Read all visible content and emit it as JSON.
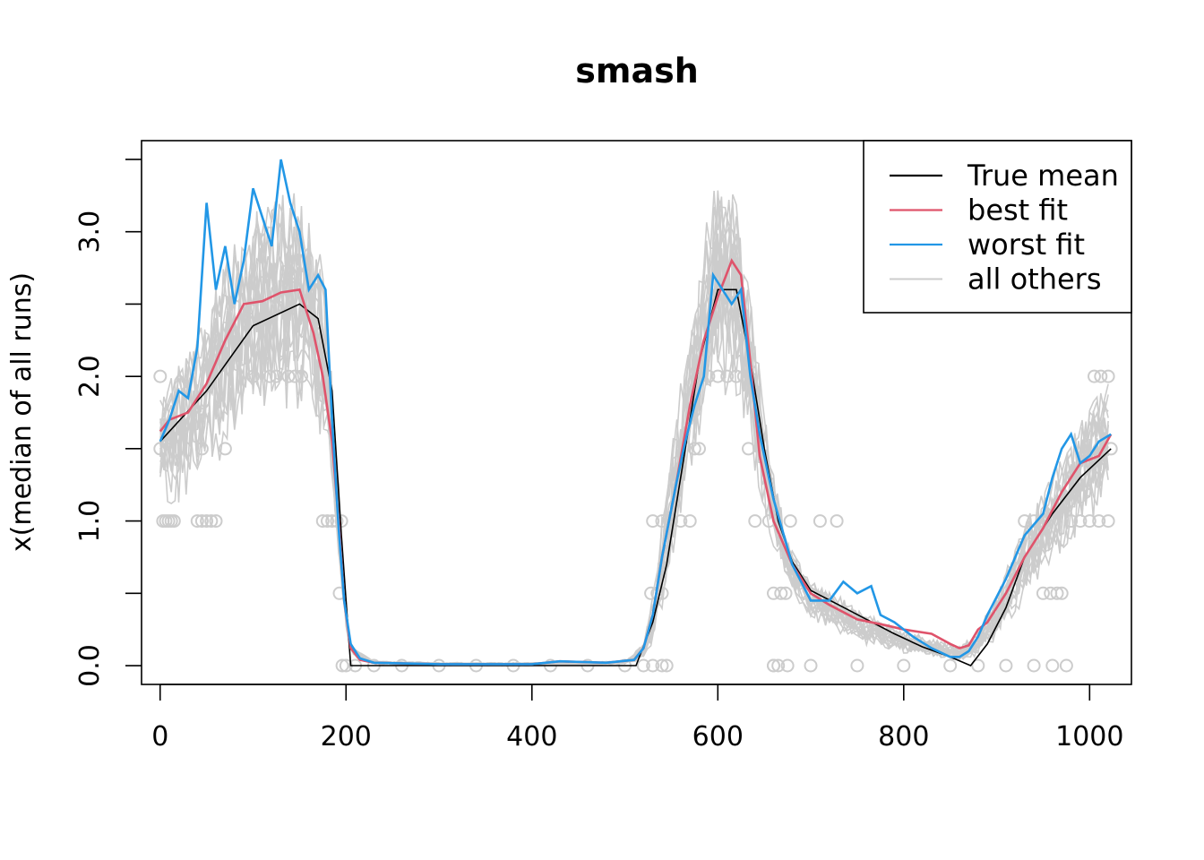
{
  "chart_data": {
    "type": "line",
    "title": "smash",
    "xlabel": "",
    "ylabel": "x(median of all runs)",
    "xlim": [
      -20,
      1045
    ],
    "ylim": [
      -0.13,
      3.63
    ],
    "x_ticks": [
      0,
      200,
      400,
      600,
      800,
      1000
    ],
    "x_tick_labels": [
      "0",
      "200",
      "400",
      "600",
      "800",
      "1000"
    ],
    "y_ticks": [
      0.0,
      0.5,
      1.0,
      1.5,
      2.0,
      2.5,
      3.0,
      3.5
    ],
    "y_tick_labels": [
      "0.0",
      "",
      "1.0",
      "",
      "2.0",
      "",
      "3.0",
      ""
    ],
    "legend": {
      "position": "top-right",
      "entries": [
        {
          "label": "True mean",
          "color": "#000000"
        },
        {
          "label": "best fit",
          "color": "#DF536B"
        },
        {
          "label": "worst fit",
          "color": "#2297E6"
        },
        {
          "label": "all others",
          "color": "#CCCCCC"
        }
      ]
    },
    "series": [
      {
        "name": "True mean",
        "color": "#000000",
        "x": [
          0,
          50,
          100,
          150,
          170,
          185,
          195,
          205,
          300,
          400,
          512,
          515,
          530,
          545,
          560,
          580,
          600,
          620,
          635,
          650,
          665,
          680,
          700,
          730,
          760,
          790,
          820,
          850,
          872,
          890,
          910,
          930,
          960,
          990,
          1023
        ],
        "values": [
          1.55,
          1.9,
          2.35,
          2.5,
          2.4,
          1.9,
          0.9,
          0.0,
          0.0,
          0.0,
          0.0,
          0.05,
          0.3,
          0.7,
          1.3,
          2.1,
          2.6,
          2.6,
          2.1,
          1.5,
          1.0,
          0.72,
          0.52,
          0.42,
          0.32,
          0.22,
          0.13,
          0.06,
          0.0,
          0.15,
          0.4,
          0.75,
          1.05,
          1.3,
          1.5
        ]
      },
      {
        "name": "best fit",
        "color": "#DF536B",
        "x": [
          0,
          10,
          30,
          50,
          70,
          90,
          110,
          130,
          150,
          165,
          175,
          185,
          192,
          198,
          205,
          215,
          230,
          300,
          400,
          430,
          480,
          510,
          520,
          530,
          540,
          555,
          570,
          585,
          600,
          615,
          625,
          635,
          645,
          660,
          680,
          700,
          720,
          750,
          780,
          800,
          830,
          850,
          860,
          870,
          880,
          890,
          910,
          930,
          950,
          970,
          990,
          1010,
          1023
        ],
        "values": [
          1.62,
          1.7,
          1.75,
          1.95,
          2.25,
          2.5,
          2.52,
          2.58,
          2.6,
          2.3,
          2.0,
          1.55,
          1.0,
          0.45,
          0.12,
          0.04,
          0.02,
          0.01,
          0.01,
          0.03,
          0.02,
          0.04,
          0.12,
          0.35,
          0.75,
          1.25,
          1.8,
          2.25,
          2.55,
          2.8,
          2.7,
          2.1,
          1.45,
          1.0,
          0.7,
          0.5,
          0.42,
          0.32,
          0.28,
          0.25,
          0.22,
          0.15,
          0.12,
          0.14,
          0.25,
          0.3,
          0.5,
          0.75,
          0.95,
          1.2,
          1.4,
          1.45,
          1.6
        ]
      },
      {
        "name": "worst fit",
        "color": "#2297E6",
        "x": [
          0,
          10,
          20,
          30,
          40,
          50,
          60,
          70,
          80,
          90,
          100,
          110,
          120,
          130,
          140,
          150,
          160,
          170,
          178,
          185,
          192,
          198,
          205,
          215,
          230,
          300,
          400,
          430,
          480,
          510,
          520,
          530,
          540,
          555,
          565,
          575,
          585,
          595,
          605,
          615,
          625,
          635,
          645,
          660,
          680,
          700,
          720,
          735,
          750,
          765,
          775,
          790,
          810,
          830,
          850,
          860,
          870,
          880,
          890,
          910,
          930,
          950,
          960,
          970,
          980,
          990,
          1000,
          1010,
          1023
        ],
        "values": [
          1.55,
          1.7,
          1.9,
          1.85,
          2.2,
          3.2,
          2.6,
          2.9,
          2.5,
          2.8,
          3.3,
          3.1,
          2.9,
          3.5,
          3.2,
          3.0,
          2.6,
          2.7,
          2.6,
          1.7,
          0.95,
          0.45,
          0.15,
          0.05,
          0.02,
          0.01,
          0.01,
          0.03,
          0.02,
          0.04,
          0.12,
          0.35,
          0.75,
          1.25,
          1.55,
          1.8,
          2.0,
          2.7,
          2.6,
          2.5,
          2.6,
          2.0,
          1.6,
          1.15,
          0.7,
          0.45,
          0.45,
          0.58,
          0.5,
          0.55,
          0.35,
          0.3,
          0.2,
          0.12,
          0.06,
          0.06,
          0.1,
          0.2,
          0.35,
          0.6,
          0.9,
          1.05,
          1.3,
          1.5,
          1.6,
          1.4,
          1.45,
          1.55,
          1.6
        ]
      }
    ],
    "all_others": {
      "name": "all others",
      "color": "#CCCCCC",
      "run_count": 20,
      "x": [
        0,
        20,
        50,
        80,
        110,
        140,
        160,
        175,
        185,
        192,
        198,
        205,
        230,
        300,
        400,
        500,
        520,
        530,
        540,
        555,
        570,
        585,
        600,
        615,
        625,
        640,
        655,
        675,
        700,
        730,
        760,
        790,
        830,
        860,
        880,
        900,
        930,
        960,
        990,
        1023
      ],
      "center": [
        1.5,
        1.6,
        1.9,
        2.2,
        2.45,
        2.5,
        2.45,
        2.1,
        1.6,
        1.0,
        0.45,
        0.1,
        0.02,
        0.01,
        0.01,
        0.02,
        0.1,
        0.3,
        0.7,
        1.2,
        1.8,
        2.3,
        2.6,
        2.65,
        2.4,
        1.8,
        1.2,
        0.7,
        0.45,
        0.35,
        0.25,
        0.18,
        0.12,
        0.08,
        0.15,
        0.35,
        0.7,
        1.0,
        1.3,
        1.55
      ],
      "spread": [
        0.35,
        0.45,
        0.55,
        0.65,
        0.7,
        0.7,
        0.65,
        0.6,
        0.4,
        0.25,
        0.1,
        0.03,
        0.01,
        0.01,
        0.01,
        0.01,
        0.05,
        0.15,
        0.3,
        0.45,
        0.55,
        0.65,
        0.7,
        0.7,
        0.6,
        0.45,
        0.3,
        0.15,
        0.12,
        0.12,
        0.1,
        0.08,
        0.06,
        0.05,
        0.08,
        0.15,
        0.25,
        0.3,
        0.35,
        0.4
      ]
    },
    "points": {
      "name": "observations",
      "color": "#CCCCCC",
      "x": [
        0,
        3,
        6,
        9,
        12,
        15,
        40,
        45,
        50,
        55,
        60,
        0,
        45,
        70,
        100,
        118,
        125,
        138,
        145,
        152,
        175,
        180,
        185,
        190,
        195,
        193,
        196,
        200,
        210,
        230,
        260,
        300,
        340,
        380,
        420,
        460,
        500,
        520,
        530,
        540,
        545,
        528,
        535,
        540,
        530,
        540,
        550,
        560,
        570,
        575,
        580,
        590,
        600,
        610,
        620,
        628,
        633,
        640,
        655,
        660,
        668,
        673,
        678,
        660,
        665,
        675,
        710,
        728,
        660,
        700,
        750,
        800,
        850,
        880,
        910,
        940,
        960,
        975,
        950,
        958,
        965,
        970,
        930,
        940,
        950,
        980,
        990,
        1000,
        1010,
        1020,
        1005,
        1012,
        1020,
        1023
      ],
      "values": [
        2.0,
        1.0,
        1.0,
        1.0,
        1.0,
        1.0,
        1.0,
        1.0,
        1.0,
        1.0,
        1.0,
        1.5,
        1.5,
        1.5,
        2.0,
        2.0,
        2.0,
        2.0,
        2.0,
        2.0,
        1.0,
        1.0,
        1.0,
        1.0,
        1.0,
        0.5,
        0.0,
        0.0,
        0.0,
        0.0,
        0.0,
        0.0,
        0.0,
        0.0,
        0.0,
        0.0,
        0.0,
        0.0,
        0.0,
        0.0,
        0.0,
        0.5,
        0.5,
        0.5,
        1.0,
        1.0,
        1.0,
        1.0,
        1.0,
        1.5,
        1.5,
        2.0,
        2.0,
        2.0,
        2.0,
        2.0,
        1.5,
        1.0,
        1.0,
        0.5,
        0.5,
        0.5,
        1.0,
        0.0,
        0.0,
        0.0,
        1.0,
        1.0,
        0.0,
        0.0,
        0.0,
        0.0,
        0.0,
        0.0,
        0.0,
        0.0,
        0.0,
        0.0,
        0.5,
        0.5,
        0.5,
        0.5,
        1.0,
        1.0,
        1.0,
        1.0,
        1.0,
        1.0,
        1.0,
        1.0,
        2.0,
        2.0,
        2.0,
        1.5
      ]
    }
  }
}
